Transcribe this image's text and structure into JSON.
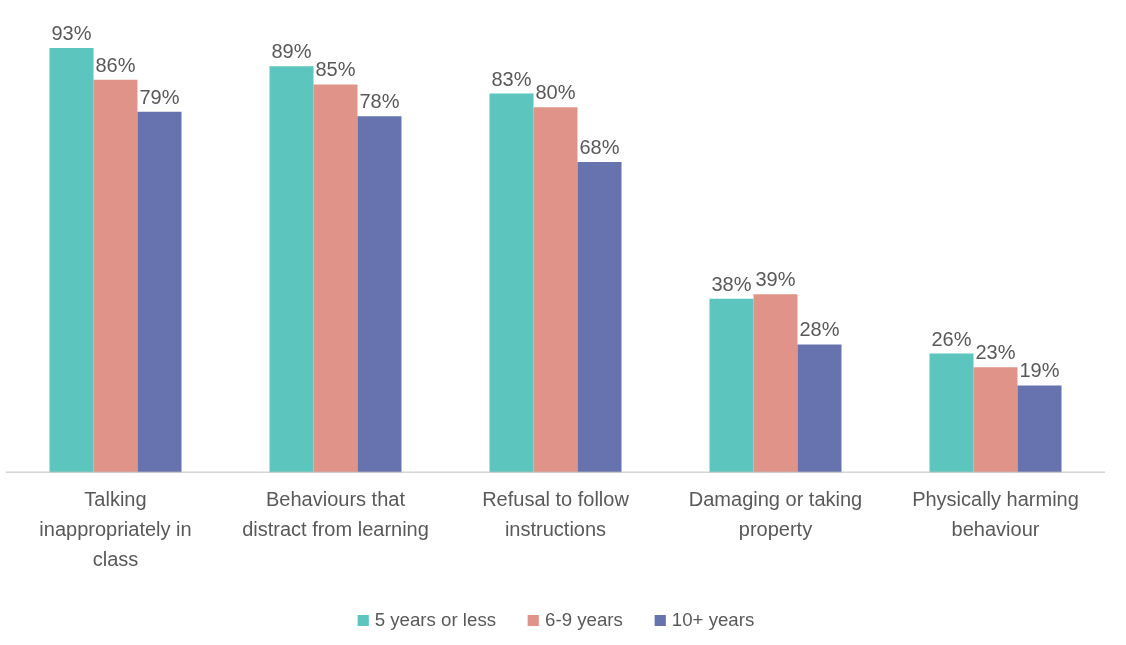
{
  "chart_data": {
    "type": "bar",
    "categories": [
      "Talking inappropriately in class",
      "Behaviours that distract from learning",
      "Refusal to follow instructions",
      "Damaging or taking property",
      "Physically harming behaviour"
    ],
    "series": [
      {
        "name": "5 years or less",
        "color": "#5bc5be",
        "values": [
          93,
          89,
          83,
          38,
          26
        ],
        "value_labels": [
          "93%",
          "89%",
          "83%",
          "38%",
          "26%"
        ]
      },
      {
        "name": "6-9 years",
        "color": "#e09489",
        "values": [
          86,
          85,
          80,
          39,
          23
        ],
        "value_labels": [
          "86%",
          "85%",
          "80%",
          "39%",
          "23%"
        ]
      },
      {
        "name": "10+ years",
        "color": "#6673ae",
        "values": [
          79,
          78,
          68,
          28,
          19
        ],
        "value_labels": [
          "79%",
          "78%",
          "68%",
          "28%",
          "19%"
        ]
      }
    ],
    "legend": "bottom",
    "grid": false
  }
}
